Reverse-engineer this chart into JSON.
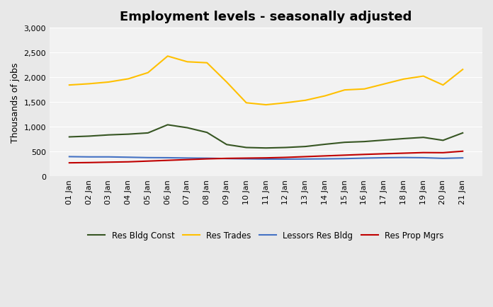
{
  "title": "Employment levels - seasonally adjusted",
  "ylabel": "Thousands of jobs",
  "xlabels": [
    "01 Jan",
    "02 Jan",
    "03 Jan",
    "04 Jan",
    "05 Jan",
    "06 Jan",
    "07 Jan",
    "08 Jan",
    "09 Jan",
    "10 Jan",
    "11 Jan",
    "12 Jan",
    "13 Jan",
    "14 Jan",
    "15 Jan",
    "16 Jan",
    "17 Jan",
    "18 Jan",
    "19 Jan",
    "20 Jan",
    "21 Jan"
  ],
  "ylim": [
    0,
    3000
  ],
  "yticks": [
    0,
    500,
    1000,
    1500,
    2000,
    2500,
    3000
  ],
  "background_color": "#e8e8e8",
  "plot_bg_color": "#f2f2f2",
  "series": {
    "Res Bldg Const": {
      "color": "#375623",
      "values": [
        790,
        805,
        830,
        845,
        870,
        1035,
        975,
        880,
        635,
        575,
        565,
        575,
        595,
        640,
        680,
        695,
        725,
        755,
        780,
        720,
        870
      ]
    },
    "Res Trades": {
      "color": "#ffc000",
      "values": [
        1840,
        1865,
        1900,
        1965,
        2090,
        2425,
        2310,
        2290,
        1900,
        1480,
        1440,
        1480,
        1530,
        1620,
        1740,
        1760,
        1860,
        1960,
        2020,
        1840,
        2155
      ]
    },
    "Lessors Res Bldg": {
      "color": "#4472c4",
      "values": [
        390,
        385,
        385,
        378,
        370,
        368,
        362,
        358,
        350,
        345,
        340,
        340,
        342,
        345,
        350,
        360,
        368,
        372,
        368,
        355,
        365
      ]
    },
    "Res Prop Mgrs": {
      "color": "#c00000",
      "values": [
        265,
        270,
        278,
        285,
        300,
        315,
        330,
        345,
        355,
        360,
        365,
        375,
        390,
        405,
        420,
        435,
        448,
        460,
        472,
        470,
        500
      ]
    }
  },
  "legend_order": [
    "Res Bldg Const",
    "Res Trades",
    "Lessors Res Bldg",
    "Res Prop Mgrs"
  ],
  "title_fontsize": 13,
  "label_fontsize": 9,
  "tick_fontsize": 8,
  "legend_fontsize": 8.5
}
